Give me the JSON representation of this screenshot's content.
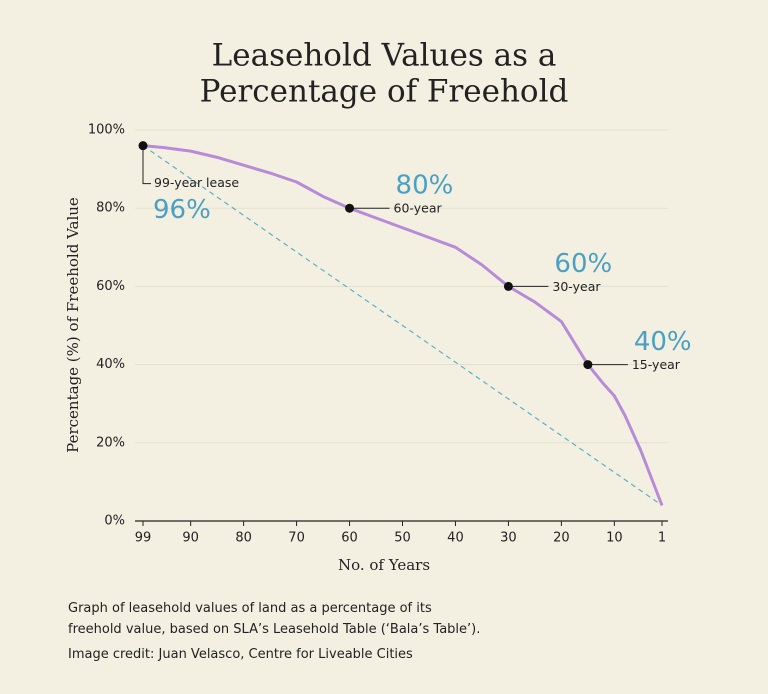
{
  "chart_data": {
    "type": "line",
    "title": [
      "Leasehold Values as a",
      "Percentage of Freehold"
    ],
    "y_label": "Percentage (%) of Freehold Value",
    "x_label": "No. of Years",
    "x": [
      99,
      95,
      90,
      85,
      80,
      75,
      70,
      65,
      60,
      55,
      50,
      45,
      40,
      35,
      30,
      25,
      20,
      15,
      12,
      10,
      8,
      5,
      3,
      1
    ],
    "values": [
      96,
      95.5,
      94.6,
      93,
      91,
      89,
      86.7,
      83,
      80,
      77.5,
      75,
      72.5,
      70,
      65.5,
      60,
      56,
      51,
      40,
      35,
      32,
      27,
      18,
      11,
      4
    ],
    "color": "#b88bd8",
    "reference_line": {
      "x": [
        99,
        1
      ],
      "values": [
        96,
        4
      ],
      "color": "#5ab0c8"
    },
    "highlights": [
      {
        "x": 99,
        "value": 96,
        "label": "96%",
        "note": "99-year lease"
      },
      {
        "x": 60,
        "value": 80,
        "label": "80%",
        "note": "60-year"
      },
      {
        "x": 30,
        "value": 60,
        "label": "60%",
        "note": "30-year"
      },
      {
        "x": 15,
        "value": 40,
        "label": "40%",
        "note": "15-year"
      }
    ],
    "xlim": [
      99,
      1
    ],
    "xticks": [
      99,
      90,
      80,
      70,
      60,
      50,
      40,
      30,
      20,
      10,
      1
    ],
    "ylim": [
      0,
      100
    ],
    "yticks": [
      {
        "value": 0,
        "label": "0%"
      },
      {
        "value": 20,
        "label": "20%"
      },
      {
        "value": 40,
        "label": "40%"
      },
      {
        "value": 60,
        "label": "60%"
      },
      {
        "value": 80,
        "label": "80%"
      },
      {
        "value": 100,
        "label": "100%"
      }
    ],
    "grid": true,
    "caption": "Graph of leasehold values of land as a percentage of its freehold value, based on SLA’s Leasehold Table (‘Bala’s Table’).",
    "credit": "Image credit: Juan Velasco, Centre for Liveable Cities"
  }
}
